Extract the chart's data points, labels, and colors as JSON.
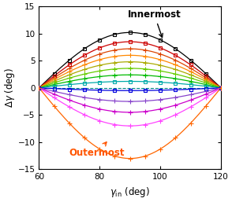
{
  "x_min": 60,
  "x_max": 120,
  "y_min": -15,
  "y_max": 15,
  "xlabel": "$\\gamma_{\\mathrm{in}}$ (deg)",
  "ylabel": "$\\Delta\\gamma$ (deg)",
  "dashed_y": 0,
  "amplitudes": [
    10.2,
    8.5,
    7.2,
    6.0,
    4.8,
    3.6,
    2.4,
    1.2,
    -0.5,
    -2.5,
    -4.5,
    -7.0,
    -13.0
  ],
  "colors": [
    "#000000",
    "#cc0000",
    "#dd4400",
    "#ff8800",
    "#aaaa00",
    "#66cc00",
    "#00bb00",
    "#00aaaa",
    "#0000dd",
    "#8844cc",
    "#cc00cc",
    "#ff44ff",
    "#ff6600"
  ],
  "markers": [
    "s",
    "s",
    "+",
    "+",
    "+",
    "+",
    "+",
    "s",
    "s",
    "+",
    "+",
    "+",
    "+"
  ],
  "n_markers": 13,
  "annotation_innermost": "Innermost",
  "annotation_outermost": "Outermost",
  "annotation_innermost_color": "#000000",
  "annotation_outermost_color": "#ff5500",
  "background_color": "#ffffff"
}
